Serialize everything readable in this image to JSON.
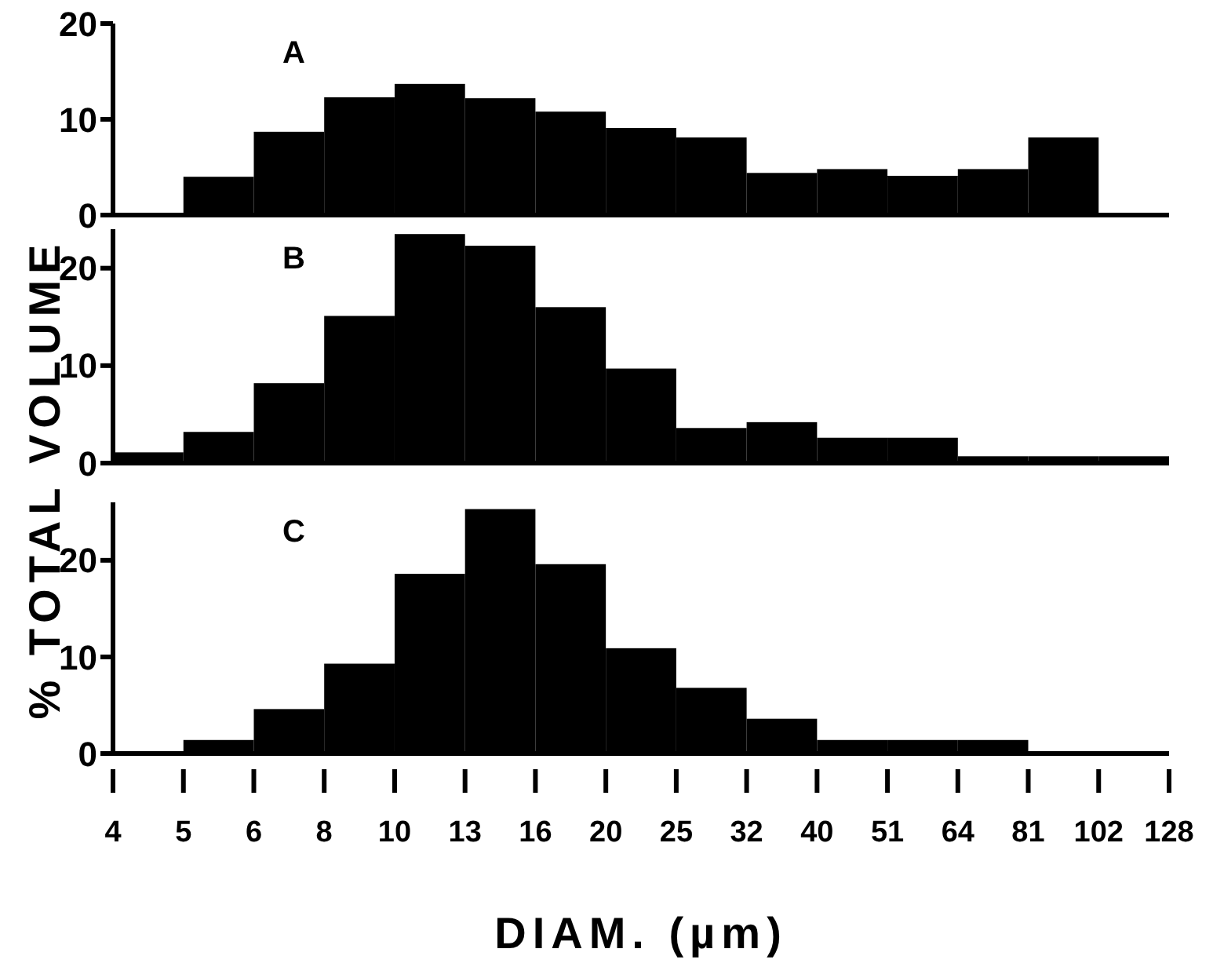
{
  "chart_data": [
    {
      "type": "histogram",
      "annotations": [
        "A"
      ],
      "bins": [
        4,
        5.04,
        6.35,
        8,
        10.08,
        12.7,
        16,
        20.16,
        25.4,
        32,
        40.32,
        50.8,
        64,
        80.63,
        101.59,
        128
      ],
      "values": [
        0,
        4.0,
        8.7,
        12.3,
        13.7,
        12.2,
        10.8,
        9.1,
        8.1,
        4.4,
        4.8,
        4.1,
        4.8,
        8.1,
        0
      ],
      "color": "#000000",
      "log": "x",
      "xlim": [
        4,
        128
      ],
      "ylim": [
        0,
        20
      ],
      "yticks": [
        0,
        10,
        20
      ],
      "tick_labels": "y",
      "grid": false,
      "legend": false
    },
    {
      "type": "histogram",
      "annotations": [
        "B"
      ],
      "ylabel": "% TOTAL VOLUME",
      "bins": [
        4,
        5.04,
        6.35,
        8,
        10.08,
        12.7,
        16,
        20.16,
        25.4,
        32,
        40.32,
        50.8,
        64,
        80.63,
        101.59,
        128
      ],
      "values": [
        1.1,
        3.2,
        8.2,
        15.1,
        23.5,
        22.3,
        16.0,
        9.7,
        3.6,
        4.2,
        2.6,
        2.6,
        0.7,
        0.7,
        0.7
      ],
      "color": "#000000",
      "log": "x",
      "xlim": [
        4,
        128
      ],
      "ylim": [
        0,
        24
      ],
      "yticks": [
        0,
        10,
        20
      ],
      "tick_labels": "y",
      "grid": false,
      "legend": false
    },
    {
      "type": "histogram",
      "annotations": [
        "C"
      ],
      "xlabel": "DIAM. (µm)",
      "bins": [
        4,
        5.04,
        6.35,
        8,
        10.08,
        12.7,
        16,
        20.16,
        25.4,
        32,
        40.32,
        50.8,
        64,
        80.63,
        101.59,
        128
      ],
      "values": [
        0,
        1.4,
        4.6,
        9.3,
        18.6,
        25.3,
        19.6,
        10.9,
        6.8,
        3.6,
        1.4,
        1.4,
        1.4,
        0,
        0
      ],
      "color": "#000000",
      "log": "x",
      "xlim": [
        4,
        128
      ],
      "xticks": [
        4,
        {
          "value": 5.04,
          "label": "5"
        },
        {
          "value": 6.35,
          "label": "6"
        },
        8,
        {
          "value": 10.08,
          "label": "10"
        },
        {
          "value": 12.7,
          "label": "13"
        },
        16,
        {
          "value": 20.16,
          "label": "20"
        },
        {
          "value": 25.4,
          "label": "25"
        },
        32,
        {
          "value": 40.32,
          "label": "40"
        },
        {
          "value": 50.8,
          "label": "51"
        },
        64,
        {
          "value": 80.63,
          "label": "81"
        },
        {
          "value": 101.59,
          "label": "102"
        },
        128
      ],
      "ylim": [
        0,
        26
      ],
      "yticks": [
        0,
        10,
        20
      ],
      "grid": false,
      "legend": false
    }
  ]
}
